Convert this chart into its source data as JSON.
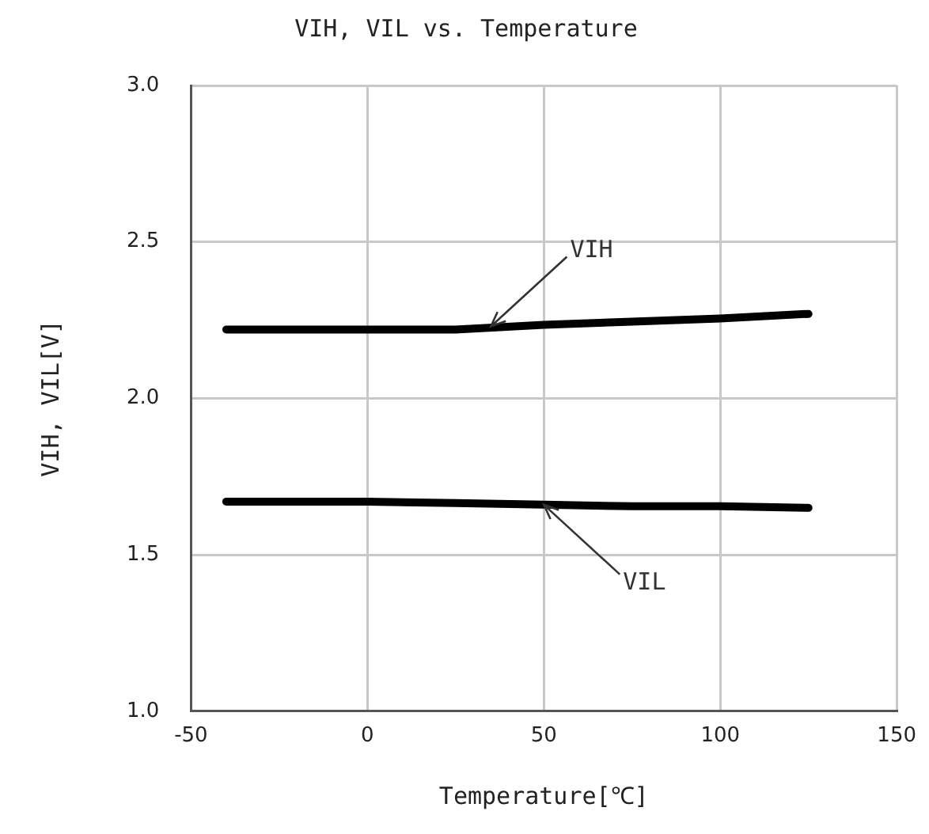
{
  "chart_data": {
    "type": "line",
    "title": "VIH, VIL vs. Temperature",
    "xlabel": "Temperature[℃]",
    "ylabel": "VIH, VIL[V]",
    "x": [
      -40,
      0,
      25,
      50,
      75,
      100,
      125
    ],
    "series": [
      {
        "color": "#000000",
        "values": [
          2.22,
          2.22,
          2.22,
          2.235,
          2.245,
          2.255,
          2.27
        ]
      },
      {
        "color": "#000000",
        "values": [
          1.67,
          1.67,
          1.665,
          1.66,
          1.655,
          1.655,
          1.65
        ]
      }
    ],
    "xlim": [
      -50,
      150
    ],
    "xticks": [
      -50,
      0,
      50,
      100,
      150
    ],
    "ylim": [
      1.0,
      3.0
    ],
    "yticks": [
      {
        "value": 1.0,
        "label": "1.0"
      },
      {
        "value": 1.5,
        "label": "1.5"
      },
      {
        "value": 2.0,
        "label": "2.0"
      },
      {
        "value": 2.5,
        "label": "2.5"
      },
      {
        "value": 3.0,
        "label": "3.0"
      }
    ],
    "annotations": [
      {
        "text": "VIH",
        "x": 35,
        "y": 2.23
      },
      {
        "text": "VIL",
        "x": 50,
        "y": 1.66
      }
    ],
    "grid": true,
    "legend": false,
    "marker": "none",
    "line_style": "solid"
  }
}
